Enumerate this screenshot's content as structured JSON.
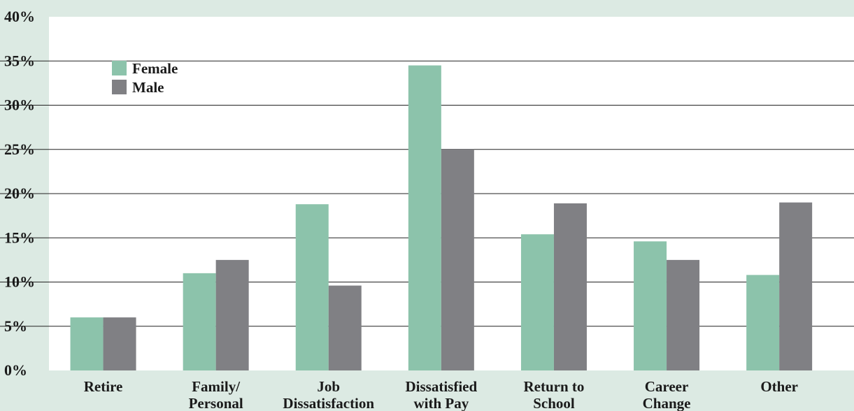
{
  "chart_data": {
    "type": "bar",
    "categories": [
      [
        "Retire"
      ],
      [
        "Family/",
        "Personal"
      ],
      [
        "Job",
        "Dissatisfaction"
      ],
      [
        "Dissatisfied",
        "with Pay"
      ],
      [
        "Return to",
        "School"
      ],
      [
        "Career",
        "Change"
      ],
      [
        "Other"
      ]
    ],
    "series": [
      {
        "name": "Female",
        "color": "#8cc3ab",
        "values": [
          6,
          11,
          18.8,
          34.5,
          15.4,
          14.6,
          10.8
        ]
      },
      {
        "name": "Male",
        "color": "#808084",
        "values": [
          6,
          12.5,
          9.6,
          25,
          18.9,
          12.5,
          19
        ]
      }
    ],
    "yticks": [
      "0%",
      "5%",
      "10%",
      "15%",
      "20%",
      "25%",
      "30%",
      "35%",
      "40%"
    ],
    "ylim": [
      0,
      40
    ],
    "grid": true,
    "legend_position": "top-left",
    "title": "",
    "xlabel": "",
    "ylabel": ""
  }
}
